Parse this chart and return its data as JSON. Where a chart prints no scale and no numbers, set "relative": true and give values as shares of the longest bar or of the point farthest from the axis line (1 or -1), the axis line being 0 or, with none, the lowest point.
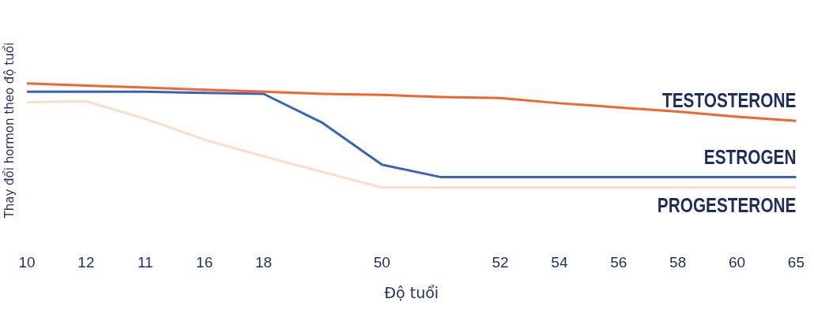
{
  "chart_data": {
    "type": "line",
    "relative": true,
    "xlabel": "Độ tuổi",
    "ylabel": "Thay đổi hormon theo độ tuổi",
    "categories": [
      "10",
      "12",
      "11",
      "16",
      "18",
      null,
      "50",
      null,
      "52",
      "54",
      "56",
      "58",
      "60",
      "65"
    ],
    "series": [
      {
        "name": "TESTOSTERONE",
        "color": "#f26430",
        "values": [
          1.0,
          0.98,
          0.96,
          0.94,
          0.92,
          0.9,
          0.89,
          0.87,
          0.86,
          0.81,
          0.77,
          0.73,
          0.68,
          0.64
        ]
      },
      {
        "name": "ESTROGEN",
        "color": "#3a62b8",
        "values": [
          0.92,
          0.92,
          0.92,
          0.91,
          0.9,
          0.62,
          0.22,
          0.1,
          0.1,
          0.1,
          0.1,
          0.1,
          0.1,
          0.1
        ]
      },
      {
        "name": "PROGESTERONE",
        "color": "#fcdccc",
        "values": [
          0.82,
          0.83,
          0.66,
          0.46,
          0.3,
          0.15,
          0,
          0,
          0,
          0,
          0,
          0,
          0,
          0
        ]
      }
    ],
    "legend": false,
    "grid": false,
    "marker": "none",
    "line_style": "solid"
  }
}
